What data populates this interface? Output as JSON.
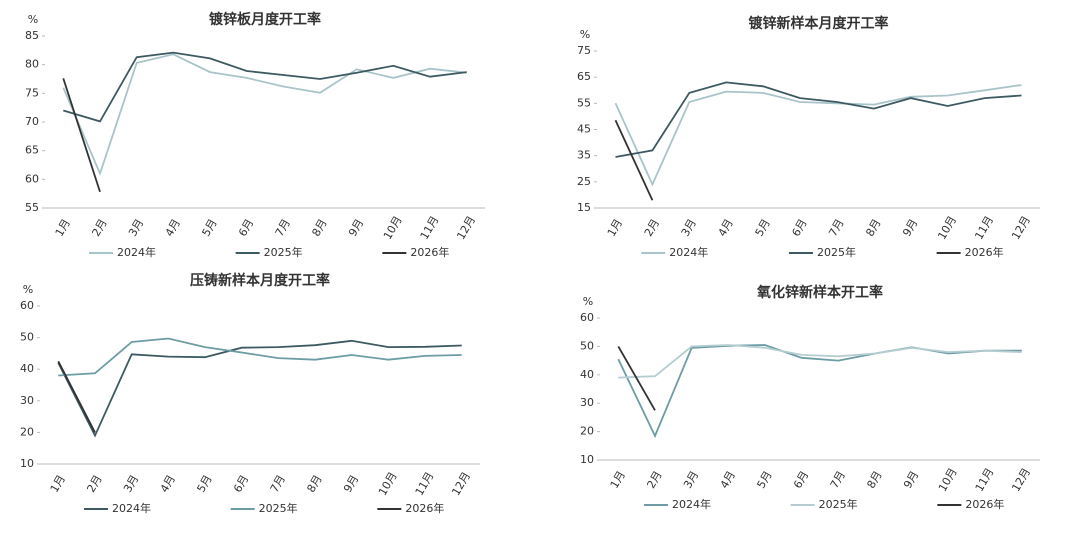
{
  "chart_data": [
    {
      "type": "line",
      "title": "镀锌板月度开工率",
      "y_label": "%",
      "categories": [
        "1月",
        "2月",
        "3月",
        "4月",
        "5月",
        "6月",
        "7月",
        "8月",
        "9月",
        "10月",
        "11月",
        "12月"
      ],
      "ylim": [
        55,
        85
      ],
      "yticks": [
        55,
        60,
        65,
        70,
        75,
        80,
        85
      ],
      "series": [
        {
          "name": "2024年",
          "color": "#a9c4c9",
          "values": [
            76,
            61,
            80.3,
            81.8,
            78.7,
            77.7,
            76.2,
            75.1,
            79.2,
            77.7,
            79.3,
            78.6
          ]
        },
        {
          "name": "2025年",
          "color": "#3d5a62",
          "values": [
            72,
            70.1,
            81.3,
            82.1,
            81.1,
            78.9,
            78.2,
            77.5,
            78.6,
            79.8,
            77.9,
            78.7
          ]
        },
        {
          "name": "2026年",
          "color": "#333333",
          "values": [
            77.6,
            57.8,
            null,
            null,
            null,
            null,
            null,
            null,
            null,
            null,
            null,
            null
          ]
        }
      ]
    },
    {
      "type": "line",
      "title": "镀锌新样本月度开工率",
      "y_label": "%",
      "categories": [
        "1月",
        "2月",
        "3月",
        "4月",
        "5月",
        "6月",
        "7月",
        "8月",
        "9月",
        "10月",
        "11月",
        "12月"
      ],
      "ylim": [
        15,
        75
      ],
      "yticks": [
        15,
        25,
        35,
        45,
        55,
        65,
        75
      ],
      "series": [
        {
          "name": "2024年",
          "color": "#a9c4c9",
          "values": [
            55,
            24,
            55.5,
            59.5,
            59,
            55.5,
            55,
            54.5,
            57.5,
            58,
            60,
            62
          ]
        },
        {
          "name": "2025年",
          "color": "#3d5a62",
          "values": [
            34.5,
            37,
            59,
            63,
            61.5,
            57,
            55.5,
            53,
            57,
            54,
            57,
            58
          ]
        },
        {
          "name": "2026年",
          "color": "#333333",
          "values": [
            48.5,
            18,
            null,
            null,
            null,
            null,
            null,
            null,
            null,
            null,
            null,
            null
          ]
        }
      ]
    },
    {
      "type": "line",
      "title": "压铸新样本月度开工率",
      "y_label": "%",
      "categories": [
        "1月",
        "2月",
        "3月",
        "4月",
        "5月",
        "6月",
        "7月",
        "8月",
        "9月",
        "10月",
        "11月",
        "12月"
      ],
      "ylim": [
        10,
        60
      ],
      "yticks": [
        10,
        20,
        30,
        40,
        50,
        60
      ],
      "series": [
        {
          "name": "2024年",
          "color": "#3d5a62",
          "values": [
            42,
            19,
            44.7,
            44,
            43.8,
            46.8,
            47,
            47.6,
            49,
            47,
            47.1,
            47.5
          ]
        },
        {
          "name": "2025年",
          "color": "#6c9ca4",
          "values": [
            38,
            38.7,
            48.6,
            49.7,
            47,
            45.3,
            43.5,
            43,
            44.5,
            43,
            44.2,
            44.5
          ]
        },
        {
          "name": "2026年",
          "color": "#333333",
          "values": [
            42.5,
            20,
            null,
            null,
            null,
            null,
            null,
            null,
            null,
            null,
            null,
            null
          ]
        }
      ]
    },
    {
      "type": "line",
      "title": "氧化锌新样本开工率",
      "y_label": "%",
      "categories": [
        "1月",
        "2月",
        "3月",
        "4月",
        "5月",
        "6月",
        "7月",
        "8月",
        "9月",
        "10月",
        "11月",
        "12月"
      ],
      "ylim": [
        10,
        60
      ],
      "yticks": [
        10,
        20,
        30,
        40,
        50,
        60
      ],
      "series": [
        {
          "name": "2024年",
          "color": "#6c9ca4",
          "values": [
            45.5,
            18.5,
            49.5,
            50.2,
            50.5,
            46,
            45,
            47.5,
            49.7,
            47.5,
            48.5,
            48.5
          ]
        },
        {
          "name": "2025年",
          "color": "#b5cdd1",
          "values": [
            39,
            39.5,
            50,
            50.5,
            49.5,
            47,
            46.5,
            47.5,
            49.5,
            48,
            48.5,
            48
          ]
        },
        {
          "name": "2026年",
          "color": "#333333",
          "values": [
            50,
            27.5,
            null,
            null,
            null,
            null,
            null,
            null,
            null,
            null,
            null,
            null
          ]
        }
      ]
    }
  ]
}
